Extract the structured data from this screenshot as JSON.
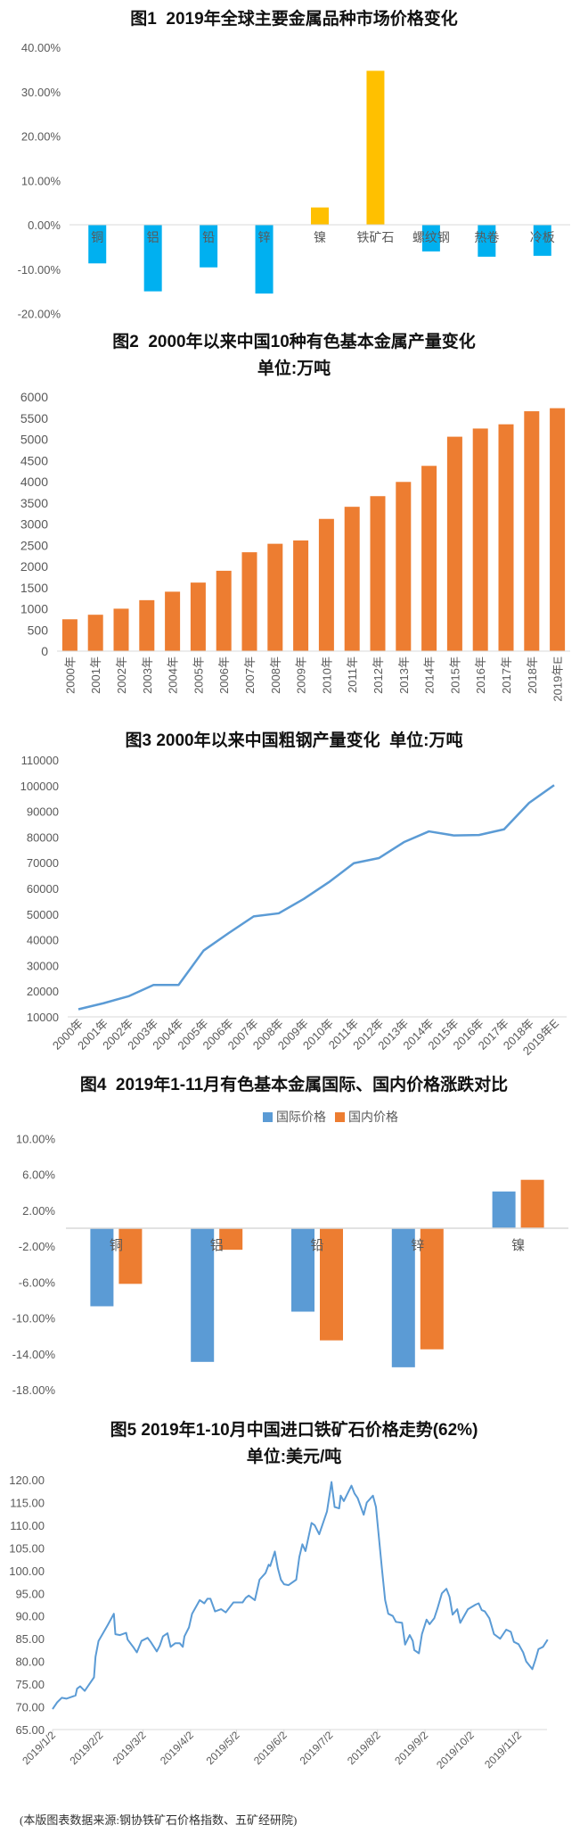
{
  "colors": {
    "blue_bar": "#00B0F0",
    "gold_bar": "#FFC000",
    "orange": "#ED7D31",
    "steel_blue": "#5B9BD5",
    "axis_text": "#595959",
    "axis_line": "#D9D9D9"
  },
  "footer": "(本版图表数据来源:钢协铁矿石价格指数、五矿经研院)",
  "chart_data": [
    {
      "type": "bar",
      "title": "图1  2019年全球主要金属品种市场价格变化",
      "categories": [
        "铜",
        "铝",
        "铅",
        "锌",
        "镍",
        "铁矿石",
        "螺纹钢",
        "热卷",
        "冷板"
      ],
      "values": [
        -8.7,
        -15.0,
        -9.6,
        -15.5,
        3.9,
        34.7,
        -6.0,
        -7.2,
        -7.0
      ],
      "unit": "%",
      "ylim": [
        -20,
        40
      ],
      "yticks": [
        -20,
        -10,
        0,
        10,
        20,
        30,
        40
      ],
      "ytick_labels": [
        "-20.00%",
        "-10.00%",
        "0.00%",
        "10.00%",
        "20.00%",
        "30.00%",
        "40.00%"
      ],
      "colors": {
        "positive": "#FFC000",
        "negative": "#00B0F0"
      },
      "grid": false
    },
    {
      "type": "bar",
      "title": "图2  2000年以来中国10种有色基本金属产量变化",
      "subtitle": "单位:万吨",
      "categories": [
        "2000年",
        "2001年",
        "2002年",
        "2003年",
        "2004年",
        "2005年",
        "2006年",
        "2007年",
        "2008年",
        "2009年",
        "2010年",
        "2011年",
        "2012年",
        "2013年",
        "2014年",
        "2015年",
        "2016年",
        "2017年",
        "2018年",
        "2019年E"
      ],
      "values": [
        752,
        859,
        1002,
        1203,
        1403,
        1618,
        1897,
        2334,
        2534,
        2613,
        3121,
        3407,
        3658,
        3994,
        4373,
        5061,
        5254,
        5354,
        5662,
        5734
      ],
      "ylim": [
        0,
        6000
      ],
      "yticks": [
        0,
        500,
        1000,
        1500,
        2000,
        2500,
        3000,
        3500,
        4000,
        4500,
        5000,
        5500,
        6000
      ],
      "color": "#ED7D31",
      "grid": false
    },
    {
      "type": "line",
      "title": "图3 2000年以来中国粗钢产量变化  单位:万吨",
      "categories": [
        "2000年",
        "2001年",
        "2002年",
        "2003年",
        "2004年",
        "2005年",
        "2006年",
        "2007年",
        "2008年",
        "2009年",
        "2010年",
        "2011年",
        "2012年",
        "2013年",
        "2014年",
        "2015年",
        "2016年",
        "2017年",
        "2018年",
        "2019年E"
      ],
      "values": [
        12960,
        15300,
        18000,
        22400,
        22400,
        35800,
        42600,
        49100,
        50300,
        55900,
        62400,
        69800,
        71800,
        78000,
        82200,
        80600,
        80800,
        83000,
        93300,
        100200
      ],
      "ylim": [
        10000,
        110000
      ],
      "yticks": [
        10000,
        20000,
        30000,
        40000,
        50000,
        60000,
        70000,
        80000,
        90000,
        100000,
        110000
      ],
      "color": "#5B9BD5",
      "grid": false
    },
    {
      "type": "bar",
      "title": "图4  2019年1-11月有色基本金属国际、国内价格涨跌对比",
      "categories": [
        "铜",
        "铝",
        "铅",
        "锌",
        "镍"
      ],
      "series": [
        {
          "name": "国际价格",
          "values": [
            -8.7,
            -14.9,
            -9.3,
            -15.5,
            4.1
          ],
          "color": "#5B9BD5"
        },
        {
          "name": "国内价格",
          "values": [
            -6.2,
            -2.4,
            -12.5,
            -13.5,
            5.4
          ],
          "color": "#ED7D31"
        }
      ],
      "unit": "%",
      "ylim": [
        -18,
        10
      ],
      "yticks": [
        -18,
        -14,
        -10,
        -6,
        -2,
        2,
        6,
        10
      ],
      "ytick_labels": [
        "-18.00%",
        "-14.00%",
        "-10.00%",
        "-6.00%",
        "-2.00%",
        "2.00%",
        "6.00%",
        "10.00%"
      ],
      "legend": "top",
      "grid": false
    },
    {
      "type": "line",
      "title": "图5 2019年1-10月中国进口铁矿石价格走势(62%)",
      "subtitle": "单位:美元/吨",
      "xlim": [
        "2019-01-02",
        "2019-11-21"
      ],
      "xticks": [
        "2019-01-02",
        "2019-02-02",
        "2019-03-02",
        "2019-04-02",
        "2019-05-02",
        "2019-06-02",
        "2019-07-02",
        "2019-08-02",
        "2019-09-02",
        "2019-10-02",
        "2019-11-02"
      ],
      "xtick_labels": [
        "2019/1/2",
        "2019/2/2",
        "2019/3/2",
        "2019/4/2",
        "2019/5/2",
        "2019/6/2",
        "2019/7/2",
        "2019/8/2",
        "2019/9/2",
        "2019/10/2",
        "2019/11/2"
      ],
      "ylim": [
        65,
        120
      ],
      "yticks": [
        65,
        70,
        75,
        80,
        85,
        90,
        95,
        100,
        105,
        110,
        115,
        120
      ],
      "color": "#5B9BD5",
      "grid": false,
      "points": [
        [
          "2019-01-02",
          69.5
        ],
        [
          "2019-01-05",
          71
        ],
        [
          "2019-01-08",
          72
        ],
        [
          "2019-01-11",
          71.8
        ],
        [
          "2019-01-17",
          72.5
        ],
        [
          "2019-01-18",
          74
        ],
        [
          "2019-01-20",
          74.5
        ],
        [
          "2019-01-23",
          73.5
        ],
        [
          "2019-01-25",
          74.5
        ],
        [
          "2019-01-29",
          76.5
        ],
        [
          "2019-01-30",
          81
        ],
        [
          "2019-02-01",
          84.5
        ],
        [
          "2019-02-07",
          88
        ],
        [
          "2019-02-11",
          90.5
        ],
        [
          "2019-02-12",
          86
        ],
        [
          "2019-02-15",
          85.8
        ],
        [
          "2019-02-19",
          86.3
        ],
        [
          "2019-02-20",
          84.8
        ],
        [
          "2019-02-24",
          83
        ],
        [
          "2019-02-26",
          82
        ],
        [
          "2019-03-01",
          84.5
        ],
        [
          "2019-03-05",
          85.2
        ],
        [
          "2019-03-07",
          84.3
        ],
        [
          "2019-03-11",
          82.2
        ],
        [
          "2019-03-13",
          83.5
        ],
        [
          "2019-03-15",
          85.5
        ],
        [
          "2019-03-18",
          86.2
        ],
        [
          "2019-03-20",
          83.2
        ],
        [
          "2019-03-23",
          84
        ],
        [
          "2019-03-26",
          84
        ],
        [
          "2019-03-28",
          83.2
        ],
        [
          "2019-03-29",
          85.5
        ],
        [
          "2019-04-01",
          87.5
        ],
        [
          "2019-04-03",
          90.5
        ],
        [
          "2019-04-08",
          93.5
        ],
        [
          "2019-04-11",
          92.8
        ],
        [
          "2019-04-13",
          93.8
        ],
        [
          "2019-04-15",
          93.8
        ],
        [
          "2019-04-18",
          91
        ],
        [
          "2019-04-22",
          91.5
        ],
        [
          "2019-04-25",
          90.8
        ],
        [
          "2019-04-30",
          93
        ],
        [
          "2019-05-06",
          93
        ],
        [
          "2019-05-08",
          94
        ],
        [
          "2019-05-10",
          94.5
        ],
        [
          "2019-05-14",
          93.5
        ],
        [
          "2019-05-17",
          98
        ],
        [
          "2019-05-21",
          99.5
        ],
        [
          "2019-05-23",
          101.3
        ],
        [
          "2019-05-24",
          101
        ],
        [
          "2019-05-27",
          104.2
        ],
        [
          "2019-05-29",
          100.5
        ],
        [
          "2019-05-31",
          98
        ],
        [
          "2019-06-02",
          97
        ],
        [
          "2019-06-05",
          96.8
        ],
        [
          "2019-06-10",
          98
        ],
        [
          "2019-06-12",
          103
        ],
        [
          "2019-06-14",
          105.8
        ],
        [
          "2019-06-16",
          104.3
        ],
        [
          "2019-06-20",
          110.5
        ],
        [
          "2019-06-22",
          110
        ],
        [
          "2019-06-25",
          108
        ],
        [
          "2019-06-30",
          113
        ],
        [
          "2019-07-03",
          119.5
        ],
        [
          "2019-07-05",
          114
        ],
        [
          "2019-07-08",
          113.7
        ],
        [
          "2019-07-09",
          116.5
        ],
        [
          "2019-07-11",
          115.3
        ],
        [
          "2019-07-16",
          118.7
        ],
        [
          "2019-07-18",
          117
        ],
        [
          "2019-07-20",
          116
        ],
        [
          "2019-07-24",
          112.3
        ],
        [
          "2019-07-26",
          115
        ],
        [
          "2019-07-30",
          116.5
        ],
        [
          "2019-08-01",
          114
        ],
        [
          "2019-08-05",
          100
        ],
        [
          "2019-08-07",
          93.5
        ],
        [
          "2019-08-09",
          90.5
        ],
        [
          "2019-08-12",
          90
        ],
        [
          "2019-08-14",
          88.7
        ],
        [
          "2019-08-18",
          88.5
        ],
        [
          "2019-08-20",
          83.7
        ],
        [
          "2019-08-23",
          85.8
        ],
        [
          "2019-08-25",
          84.5
        ],
        [
          "2019-08-26",
          82.5
        ],
        [
          "2019-08-29",
          81.8
        ],
        [
          "2019-08-31",
          86
        ],
        [
          "2019-09-03",
          89.2
        ],
        [
          "2019-09-05",
          88.2
        ],
        [
          "2019-09-08",
          89.5
        ],
        [
          "2019-09-10",
          91.5
        ],
        [
          "2019-09-13",
          95
        ],
        [
          "2019-09-16",
          96
        ],
        [
          "2019-09-18",
          94.2
        ],
        [
          "2019-09-20",
          90.3
        ],
        [
          "2019-09-23",
          91.5
        ],
        [
          "2019-09-25",
          88.5
        ],
        [
          "2019-09-30",
          91.5
        ],
        [
          "2019-10-05",
          92.5
        ],
        [
          "2019-10-07",
          92.8
        ],
        [
          "2019-10-09",
          91.3
        ],
        [
          "2019-10-11",
          91
        ],
        [
          "2019-10-14",
          89.5
        ],
        [
          "2019-10-17",
          86
        ],
        [
          "2019-10-21",
          85
        ],
        [
          "2019-10-25",
          87
        ],
        [
          "2019-10-28",
          86.5
        ],
        [
          "2019-10-30",
          84.3
        ],
        [
          "2019-11-02",
          83.8
        ],
        [
          "2019-11-05",
          82
        ],
        [
          "2019-11-07",
          80
        ],
        [
          "2019-11-11",
          78.3
        ],
        [
          "2019-11-13",
          80.3
        ],
        [
          "2019-11-15",
          82.7
        ],
        [
          "2019-11-18",
          83.2
        ],
        [
          "2019-11-21",
          84.8
        ]
      ]
    }
  ]
}
